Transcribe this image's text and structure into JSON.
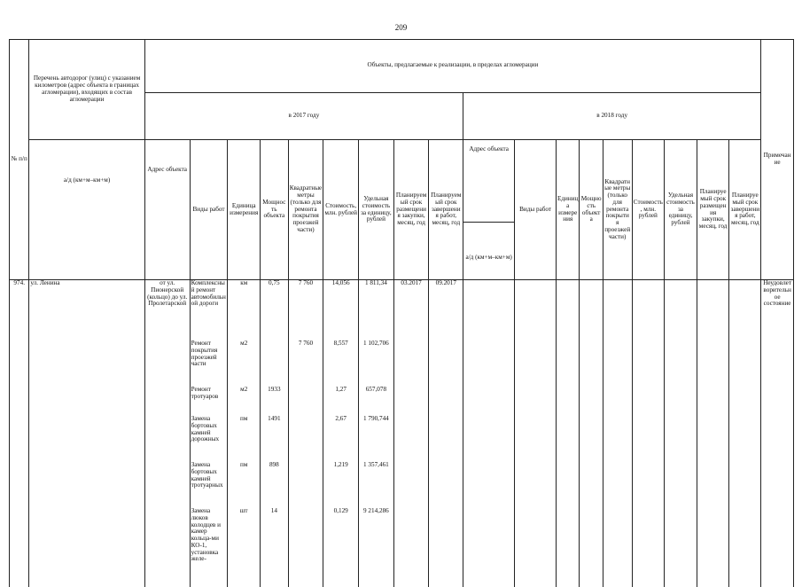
{
  "page_number": "209",
  "header": {
    "num": "№ п/п",
    "road_list": "Перечень автодорог (улиц) с указанием километров (адрес объекта в границах агломерации), входящих в состав агломерации",
    "road_sub": "а/д (км+м–км+м)",
    "objects_title": "Объекты, предлагаемые к реализации, в пределах агломерации",
    "year_2017": "в 2017 году",
    "year_2018": "в 2018 году",
    "addr": "Адрес объекта",
    "work_types": "Виды работ",
    "unit": "Единица измерения",
    "power": "Мощность объекта",
    "sq_meters": "Квадратные метры (только для ремонта покрытия проезжей части)",
    "cost": "Стоимость, млн. рублей",
    "unit_cost": "Удельная стоимость за единицу, рублей",
    "plan_place": "Планируемый срок размещения закупки, месяц, год",
    "plan_end": "Планируемый срок завершения работ, месяц, год",
    "addr_2018": "Адрес объекта",
    "addr_2018_sub": "а/д (км+м–км+м)",
    "work_types_2018": "Виды работ",
    "unit_2018": "Единица измерения",
    "power_2018": "Мощность объекта",
    "sq_meters_2018": "Квадратные метры (только для ремонта покрытия проезжей части)",
    "cost_2018": "Стоимость, млн. рублей",
    "unit_cost_2018": "Удельная стоимость за единицу, рублей",
    "plan_place_2018": "Планируемый срок размещения закупки, месяц, год",
    "plan_end_2018": "Планируемый срок завершения работ, месяц, год",
    "note": "Примечание"
  },
  "row": {
    "num": "974.",
    "road": "ул. Ленина",
    "addr": "от ул. Пионерской (кольцо) до ул. Пролетарской",
    "plan_place": "03.2017",
    "plan_end": "09.2017",
    "note": "Неудовлетворительное состояние"
  },
  "works": [
    {
      "work": "Комплексный ремонт автомобильной дороги",
      "unit": "км",
      "power": "0,75",
      "sq": "7 760",
      "cost": "14,056",
      "unit_cost": "1 811,34"
    },
    {
      "work": "Ремонт покрытия проезжей части",
      "unit": "м2",
      "power": "",
      "sq": "7 760",
      "cost": "8,557",
      "unit_cost": "1 102,706"
    },
    {
      "work": "Ремонт тротуаров",
      "unit": "м2",
      "power": "1933",
      "sq": "",
      "cost": "1,27",
      "unit_cost": "657,078"
    },
    {
      "work": "Замена бортовых камней дорожных",
      "unit": "пм",
      "power": "1491",
      "sq": "",
      "cost": "2,67",
      "unit_cost": "1 790,744"
    },
    {
      "work": "Замена бортовых камней тротуарных",
      "unit": "пм",
      "power": "898",
      "sq": "",
      "cost": "1,219",
      "unit_cost": "1 357,461"
    },
    {
      "work": "Замена люков колодцев и камер кольца-ми КО-1, установка желе-",
      "unit": "шт",
      "power": "14",
      "sq": "",
      "cost": "0,129",
      "unit_cost": "9 214,286"
    }
  ]
}
